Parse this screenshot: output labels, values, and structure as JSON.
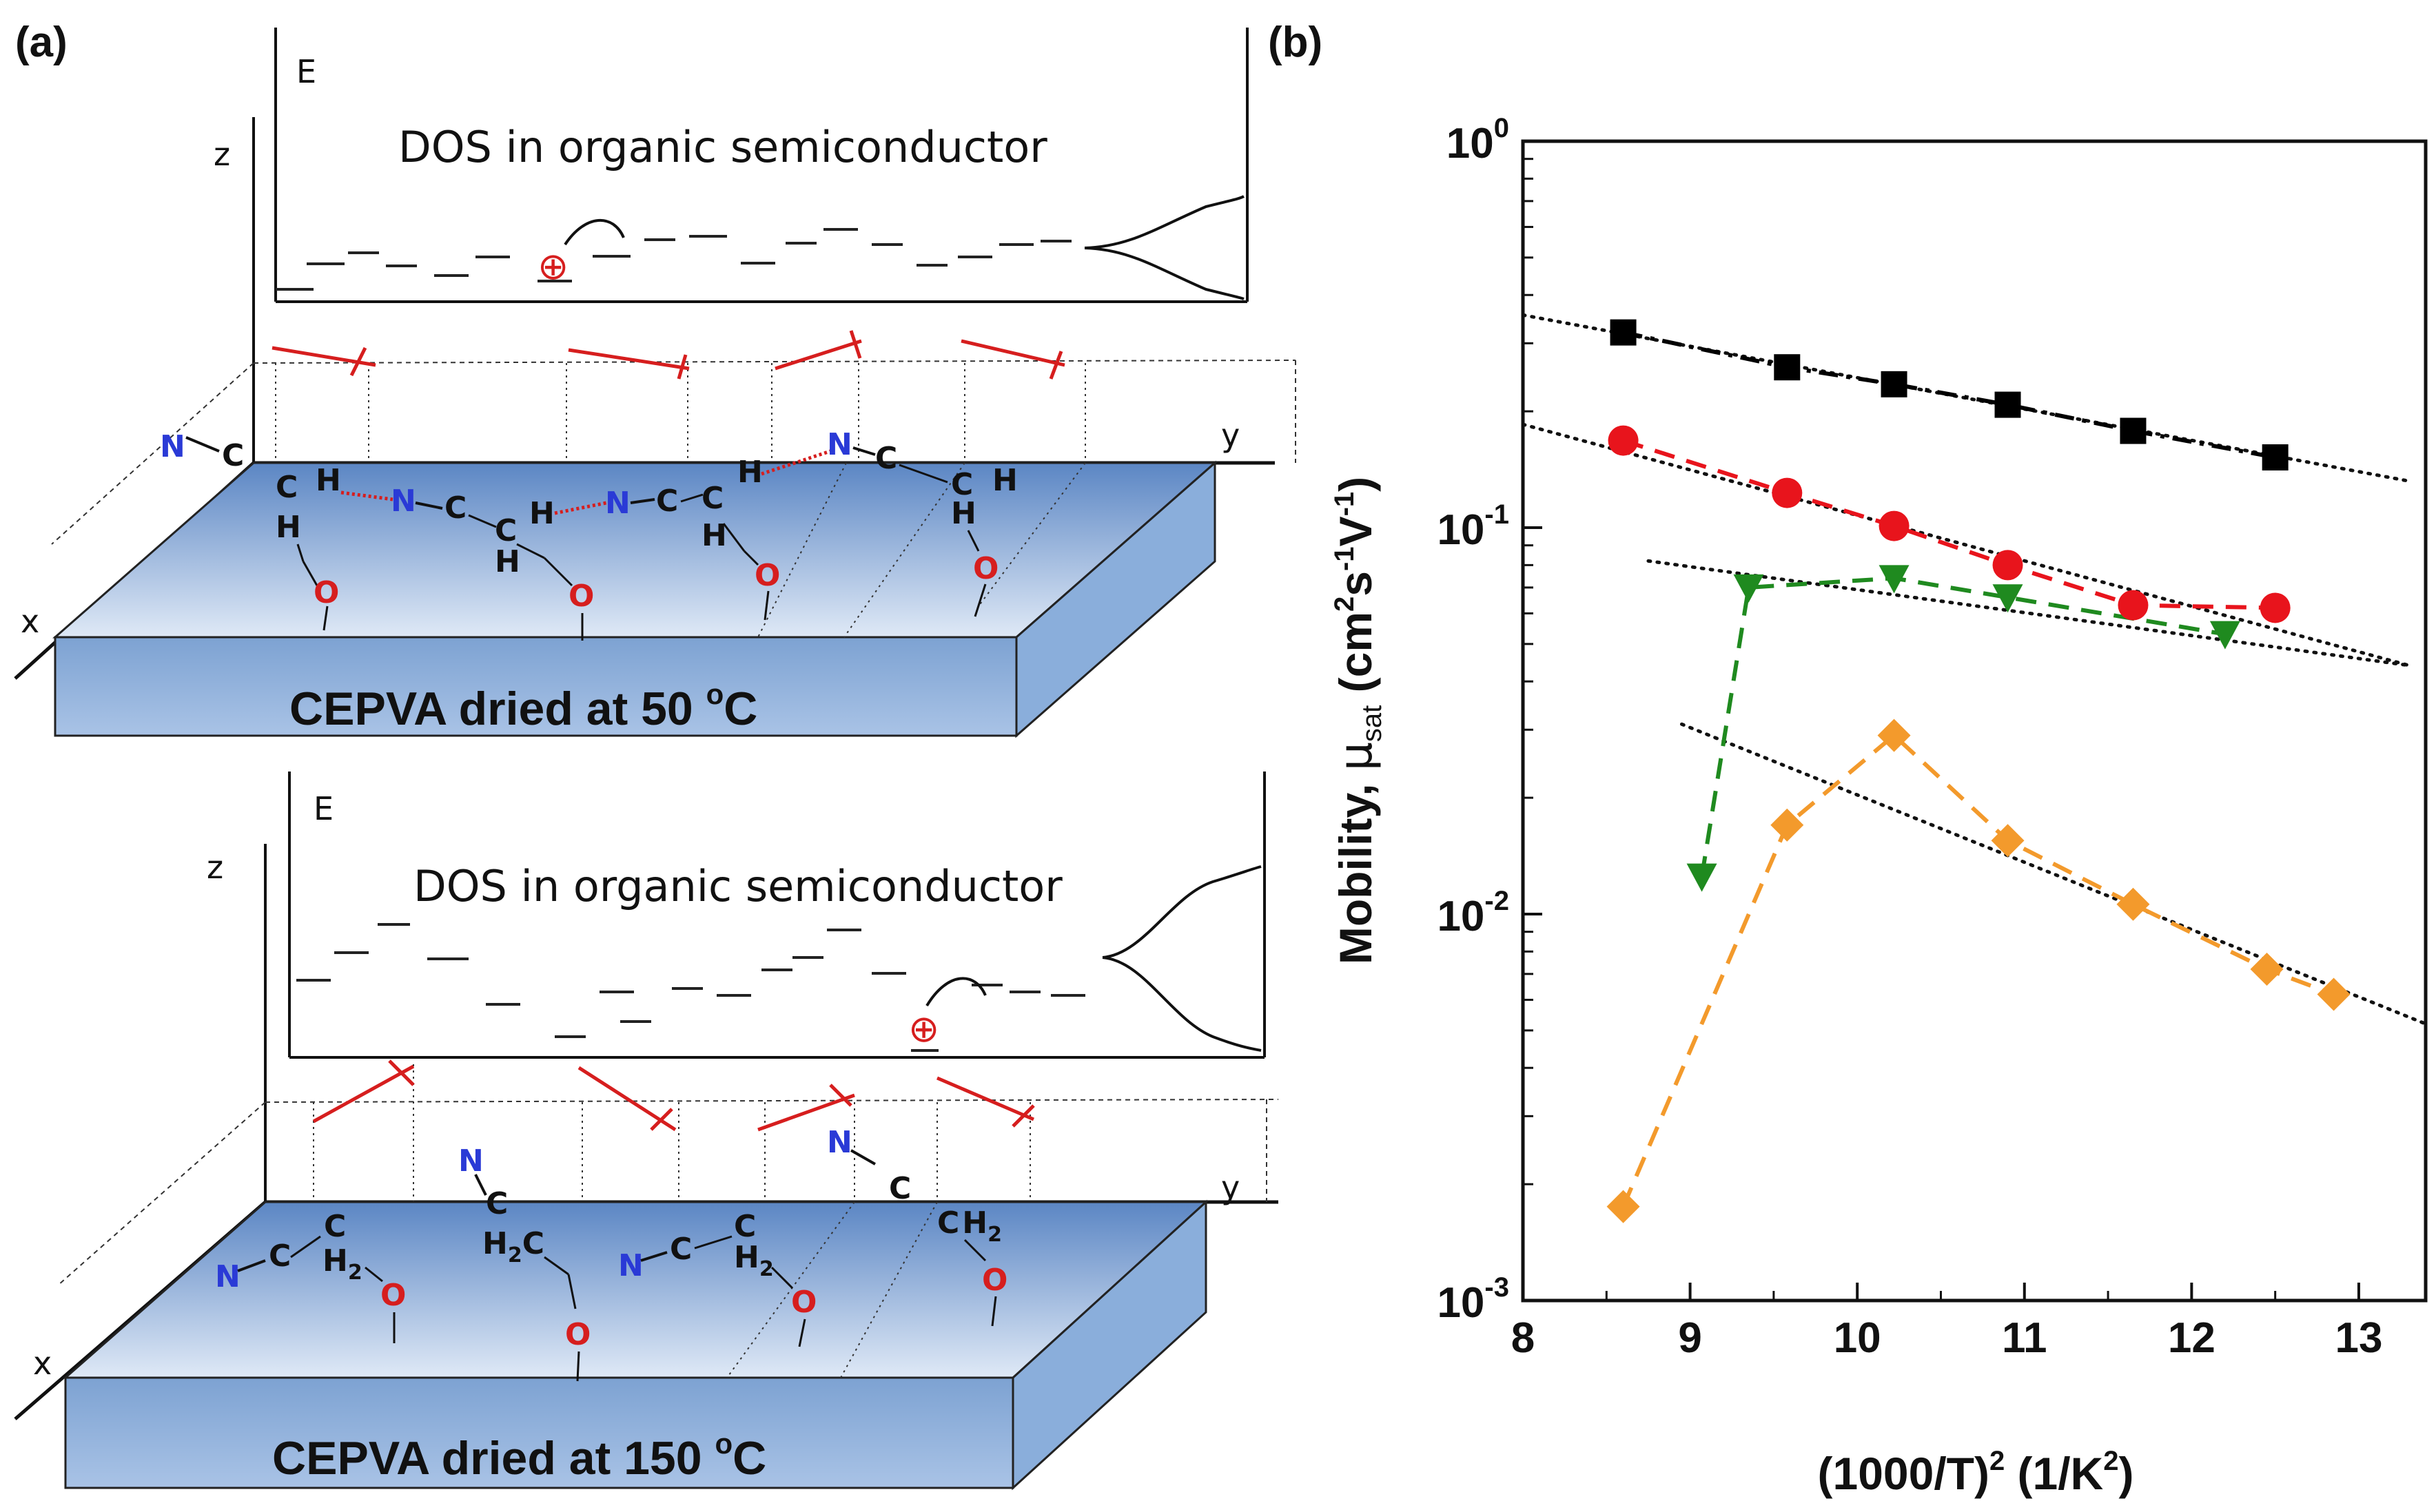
{
  "panel_a": {
    "label": "(a)",
    "top": {
      "caption": "CEPVA dried at 50 °C",
      "caption_main": "CEPVA dried at 50 ",
      "caption_sup": "o",
      "caption_end": "C",
      "dos_title": "DOS in organic semiconductor",
      "axis_e": "E",
      "axis_x": "x",
      "axis_y": "y",
      "axis_z": "z",
      "charge_symbol": "⊕"
    },
    "bottom": {
      "caption": "CEPVA dried at 150 °C",
      "caption_main": "CEPVA dried at 150 ",
      "caption_sup": "o",
      "caption_end": "C",
      "dos_title": "DOS in organic semiconductor",
      "axis_e": "E",
      "axis_x": "x",
      "axis_y": "y",
      "axis_z": "z",
      "charge_symbol": "⊕"
    },
    "atoms": {
      "N": "N",
      "C": "C",
      "H": "H",
      "O": "O",
      "H2C": "H",
      "H2": "H",
      "sub2": "2"
    }
  },
  "panel_b": {
    "label": "(b)"
  },
  "chart_data": {
    "type": "scatter",
    "xlabel": "(1000/T)² (1/K²)",
    "xlabel_main": "(1000/T)",
    "xlabel_sup1": "2",
    "xlabel_unit": " (1/K",
    "xlabel_sup2": "2",
    "xlabel_close": ")",
    "ylabel": "Mobility, μsat (cm²s⁻¹V⁻¹)",
    "ylabel_main": "Mobility, ",
    "ylabel_mu": "μ",
    "ylabel_sub": "sat",
    "ylabel_unit": " (cm",
    "ylabel_sup1": "2",
    "ylabel_s": "s",
    "ylabel_sup2": "-1",
    "ylabel_v": "V",
    "ylabel_sup3": "-1",
    "ylabel_close": ")",
    "xlim": [
      8,
      13.4
    ],
    "ylim": [
      0.001,
      1
    ],
    "yscale": "log",
    "xticks": [
      8,
      9,
      10,
      11,
      12,
      13
    ],
    "xtick_labels": [
      "8",
      "9",
      "10",
      "11",
      "12",
      "13"
    ],
    "yticks": [
      {
        "base": "10",
        "exp": "0",
        "value": 1
      },
      {
        "base": "10",
        "exp": "-1",
        "value": 0.1
      },
      {
        "base": "10",
        "exp": "-2",
        "value": 0.01
      },
      {
        "base": "10",
        "exp": "-3",
        "value": 0.001
      }
    ],
    "series": [
      {
        "name": "black squares",
        "marker": "square",
        "color": "#000000",
        "dash": "dashdot",
        "x": [
          8.6,
          9.58,
          10.22,
          10.9,
          11.65,
          12.5
        ],
        "y": [
          0.32,
          0.26,
          0.235,
          0.208,
          0.178,
          0.152
        ]
      },
      {
        "name": "red circles",
        "marker": "circle",
        "color": "#e8141c",
        "dash": "dash",
        "x": [
          8.6,
          9.58,
          10.22,
          10.9,
          11.65,
          12.5
        ],
        "y": [
          0.168,
          0.123,
          0.101,
          0.08,
          0.063,
          0.062
        ]
      },
      {
        "name": "green triangles",
        "marker": "triangle-down",
        "color": "#1f8a1f",
        "dash": "dash",
        "x": [
          9.07,
          9.35,
          10.22,
          10.9,
          12.2
        ],
        "y": [
          0.0125,
          0.07,
          0.074,
          0.066,
          0.053
        ]
      },
      {
        "name": "orange diamonds",
        "marker": "diamond",
        "color": "#f39a2c",
        "dash": "dash",
        "x": [
          8.6,
          9.58,
          10.22,
          10.9,
          11.65,
          12.45,
          12.85
        ],
        "y": [
          0.00175,
          0.017,
          0.029,
          0.0155,
          0.0106,
          0.0072,
          0.0062
        ]
      }
    ],
    "fits": [
      {
        "x": [
          8.0,
          13.3
        ],
        "y": [
          0.355,
          0.132
        ]
      },
      {
        "x": [
          8.0,
          13.3
        ],
        "y": [
          0.185,
          0.044
        ]
      },
      {
        "x": [
          8.75,
          13.3
        ],
        "y": [
          0.082,
          0.044
        ]
      },
      {
        "x": [
          8.95,
          13.4
        ],
        "y": [
          0.031,
          0.0052
        ]
      }
    ]
  }
}
